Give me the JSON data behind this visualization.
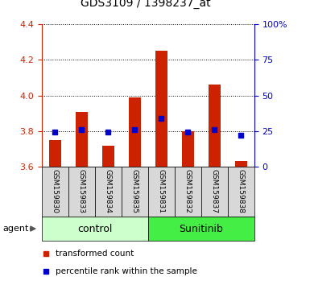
{
  "title": "GDS3109 / 1398237_at",
  "samples": [
    "GSM159830",
    "GSM159833",
    "GSM159834",
    "GSM159835",
    "GSM159831",
    "GSM159832",
    "GSM159837",
    "GSM159838"
  ],
  "groups": [
    {
      "label": "control",
      "indices": [
        0,
        1,
        2,
        3
      ],
      "color": "#ccffcc"
    },
    {
      "label": "Sunitinib",
      "indices": [
        4,
        5,
        6,
        7
      ],
      "color": "#44ee44"
    }
  ],
  "bar_bottoms": [
    3.6,
    3.6,
    3.6,
    3.6,
    3.6,
    3.6,
    3.6,
    3.6
  ],
  "bar_tops": [
    3.75,
    3.91,
    3.72,
    3.99,
    4.25,
    3.8,
    4.06,
    3.63
  ],
  "blue_values": [
    3.795,
    3.81,
    3.795,
    3.81,
    3.87,
    3.795,
    3.81,
    3.775
  ],
  "ylim_left": [
    3.6,
    4.4
  ],
  "ylim_right": [
    0,
    100
  ],
  "yticks_left": [
    3.6,
    3.8,
    4.0,
    4.2,
    4.4
  ],
  "yticks_right": [
    0,
    25,
    50,
    75,
    100
  ],
  "ytick_labels_right": [
    "0",
    "25",
    "50",
    "75",
    "100%"
  ],
  "bar_color": "#cc2200",
  "blue_color": "#0000cc",
  "axis_color_left": "#cc2200",
  "axis_color_right": "#0000cc",
  "legend_red_label": "transformed count",
  "legend_blue_label": "percentile rank within the sample",
  "agent_label": "agent",
  "bar_width": 0.45
}
